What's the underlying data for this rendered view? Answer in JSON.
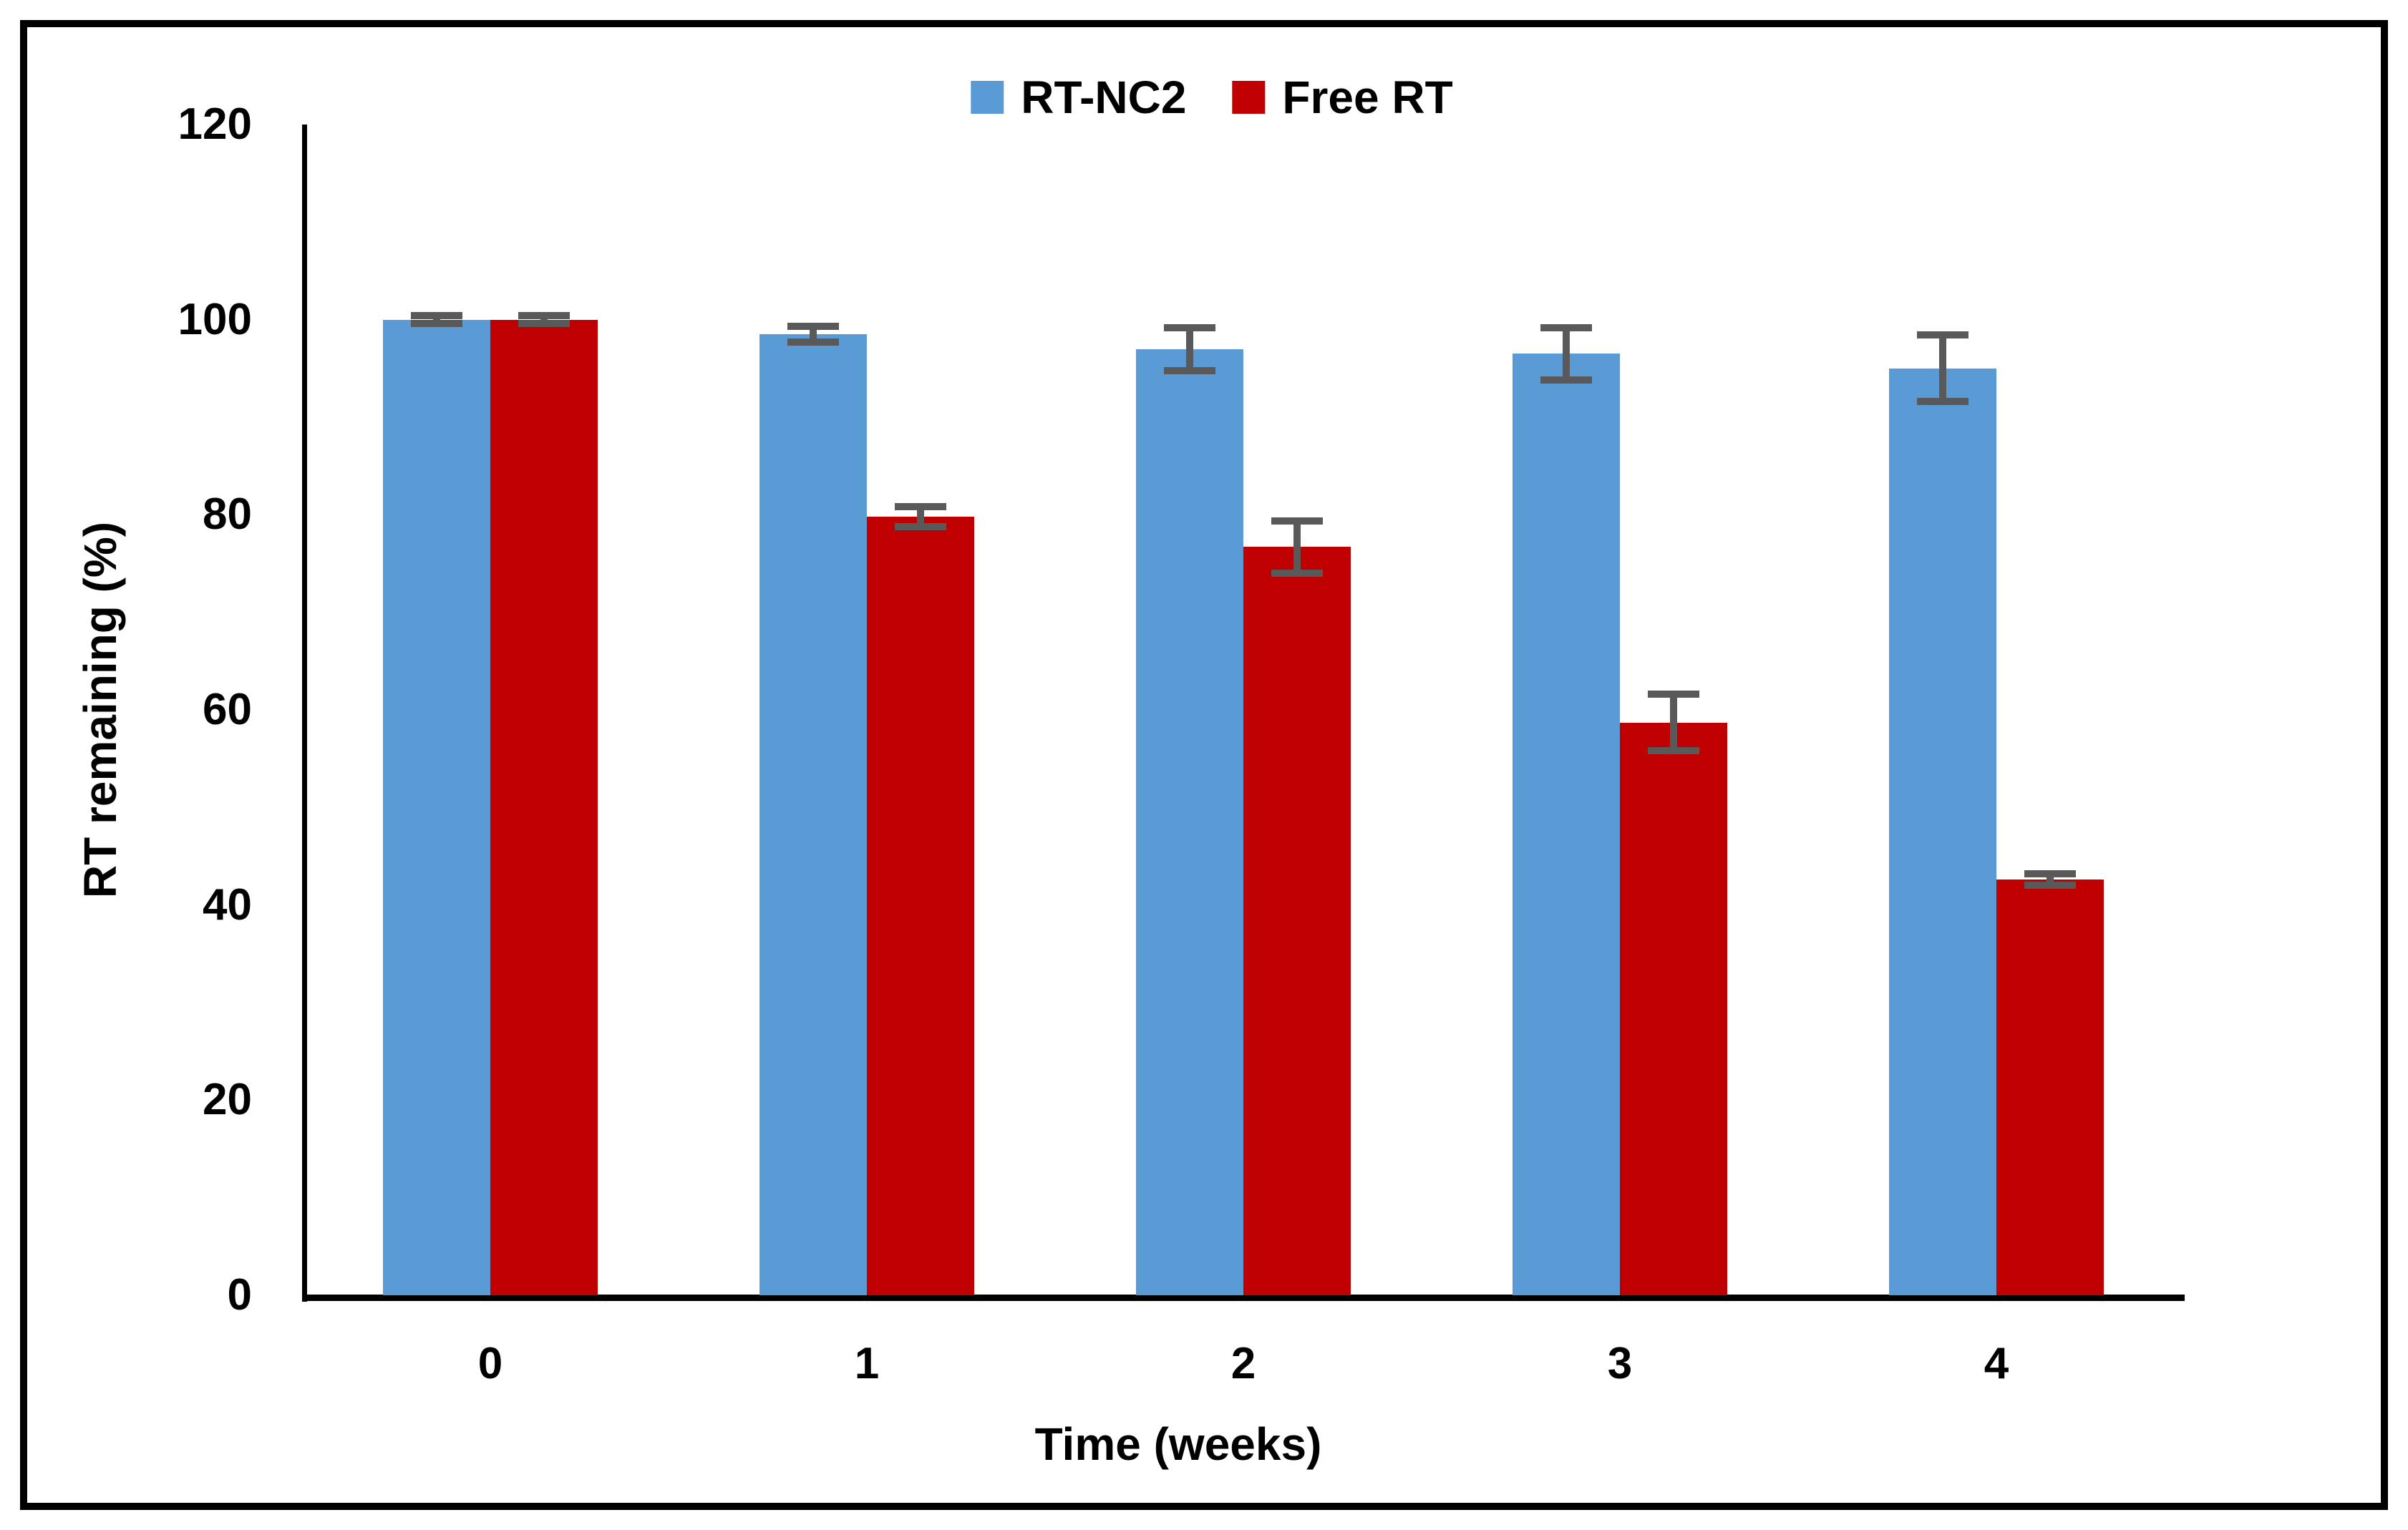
{
  "figure": {
    "background": "#ffffff",
    "border_color": "#000000"
  },
  "chart_data": {
    "type": "bar",
    "title": "",
    "categories": [
      "0",
      "1",
      "2",
      "3",
      "4"
    ],
    "series": [
      {
        "name": "RT-NC2",
        "color": "#5B9BD5",
        "values": [
          100,
          98.5,
          97,
          96.5,
          95
        ],
        "errors": [
          0.4,
          0.8,
          2.2,
          2.7,
          3.4
        ]
      },
      {
        "name": "Free RT",
        "color": "#C00000",
        "values": [
          100,
          79.8,
          76.7,
          58.7,
          42.6
        ],
        "errors": [
          0.4,
          1.0,
          2.7,
          2.9,
          0.6
        ]
      }
    ],
    "xlabel": "Time (weeks)",
    "ylabel": "RT remaining (%)",
    "ylim": [
      0,
      120
    ],
    "yticks": [
      0,
      20,
      40,
      60,
      80,
      100,
      120
    ],
    "grid": false,
    "legend_position": "top-center",
    "error_bar_color": "#595959",
    "axis_color": "#000000"
  }
}
